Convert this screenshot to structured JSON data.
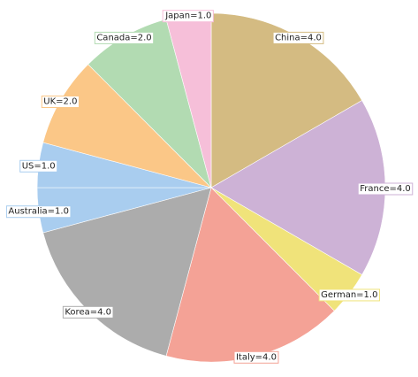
{
  "chart_data": {
    "type": "pie",
    "categories": [
      "China",
      "France",
      "German",
      "Italy",
      "Korea",
      "Australia",
      "US",
      "UK",
      "Canada",
      "Japan"
    ],
    "values": [
      4,
      4,
      1,
      4,
      4,
      1,
      1,
      2,
      2,
      1
    ],
    "value_labels": [
      "China=4.0",
      "France=4.0",
      "German=1.0",
      "Italy=4.0",
      "Korea=4.0",
      "Australia=1.0",
      "US=1.0",
      "UK=2.0",
      "Canada=2.0",
      "Japan=1.0"
    ],
    "colors": [
      "#d4bb82",
      "#cdb2d6",
      "#f0e37a",
      "#f4a296",
      "#acacac",
      "#a9cdef",
      "#a9cdef",
      "#fbc787",
      "#b2dbb2",
      "#f6bfd9"
    ]
  }
}
